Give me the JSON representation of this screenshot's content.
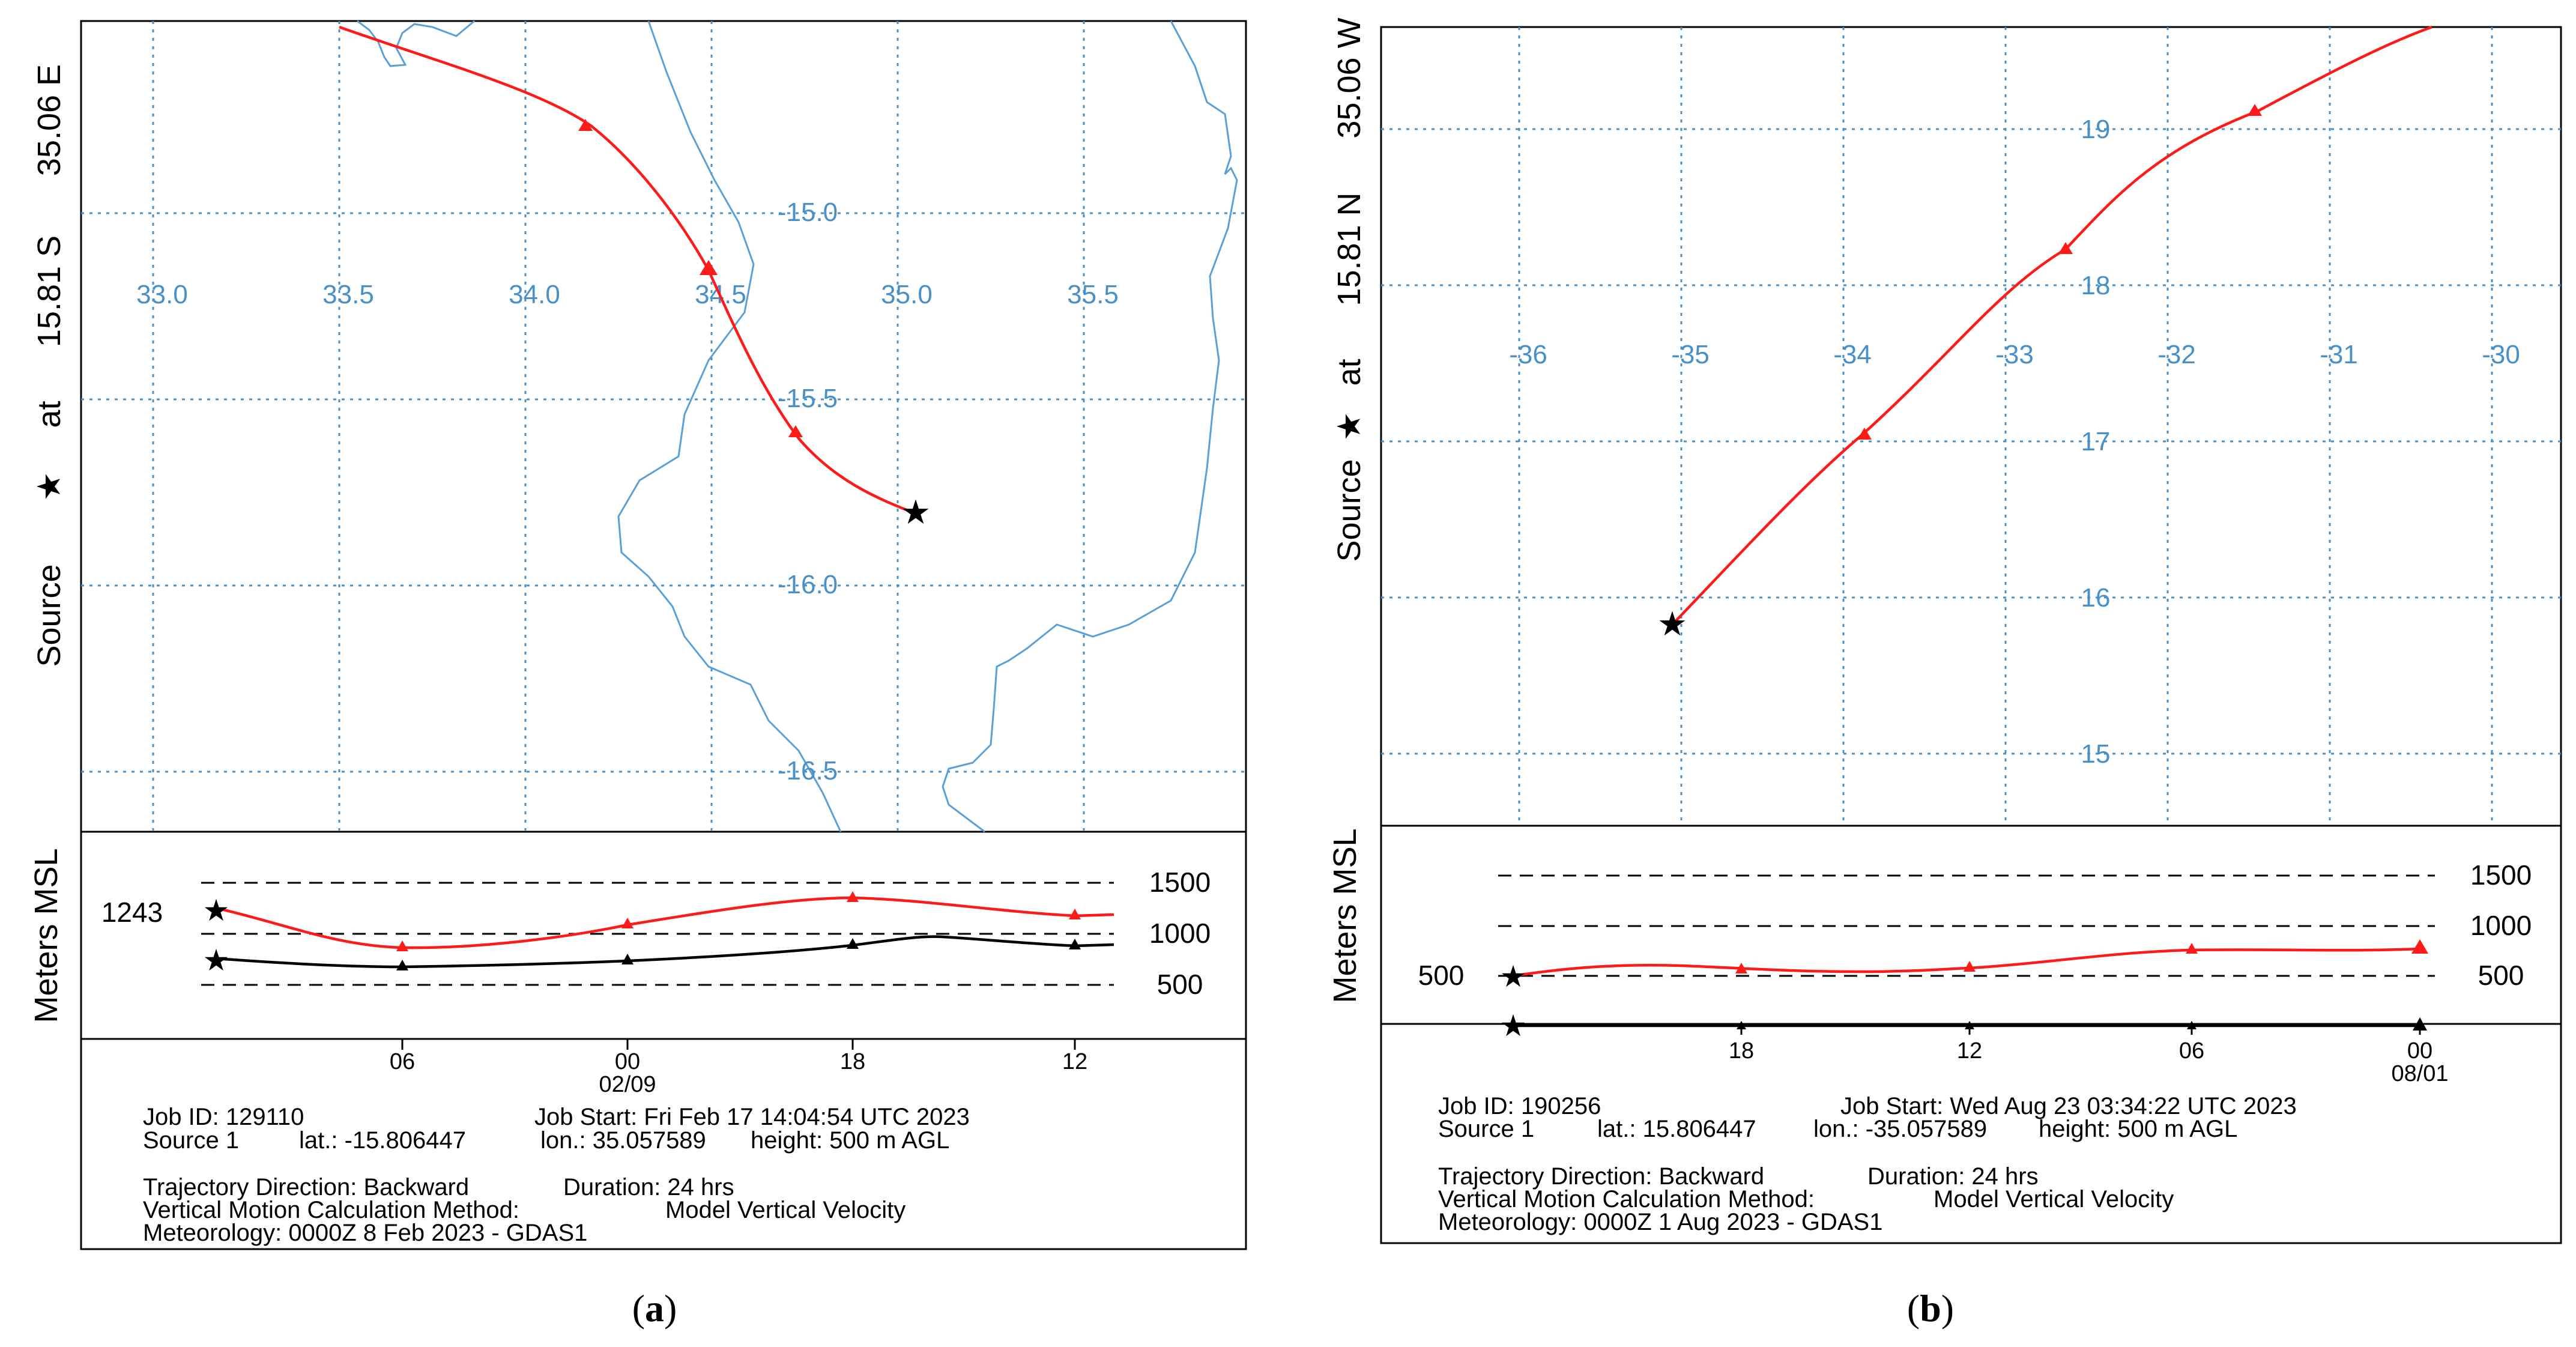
{
  "panel_a": {
    "caption_open": "(",
    "caption_letter": "a",
    "caption_close": ")",
    "side_label": {
      "prefix": "Source",
      "star": "★",
      "at": "at",
      "lat": "15.81 S",
      "lon": "35.06 E"
    },
    "axis_title": "Meters MSL",
    "lon_labels": [
      "33.0",
      "33.5",
      "34.0",
      "34.5",
      "35.0",
      "35.5"
    ],
    "lat_labels": [
      "-15.0",
      "-15.5",
      "-16.0",
      "-16.5"
    ],
    "height_levels": [
      "1500",
      "1000",
      "500"
    ],
    "start_height": "1243",
    "time_labels": [
      "06",
      "00",
      "18",
      "12"
    ],
    "date_label": "02/09",
    "info": {
      "job_id": "Job ID: 129110",
      "job_start": "Job Start: Fri Feb 17 14:04:54 UTC 2023",
      "source": "Source 1",
      "lat": "lat.: -15.806447",
      "lon": "lon.: 35.057589",
      "height": "height: 500 m AGL",
      "direction": "Trajectory Direction: Backward",
      "duration": "Duration: 24 hrs",
      "vmethod": "Vertical Motion Calculation Method:",
      "vmethod_value": "Model Vertical Velocity",
      "meteorology": "Meteorology: 0000Z 8 Feb 2023 - GDAS1"
    },
    "colors": {
      "trajectory": "#ff1a1a",
      "grid": "#4a90c8",
      "coast": "#5aa0d8",
      "terrain": "#000000"
    }
  },
  "panel_b": {
    "caption_open": "(",
    "caption_letter": "b",
    "caption_close": ")",
    "side_label": {
      "prefix": "Source",
      "star": "★",
      "at": "at",
      "lat": "15.81 N",
      "lon": "35.06 W"
    },
    "axis_title": "Meters MSL",
    "lon_labels": [
      "-36",
      "-35",
      "-34",
      "-33",
      "-32",
      "-31",
      "-30"
    ],
    "lat_labels": [
      "19",
      "18",
      "17",
      "16",
      "15"
    ],
    "height_levels": [
      "1500",
      "1000",
      "500"
    ],
    "start_height": "500",
    "time_labels": [
      "18",
      "12",
      "06",
      "00"
    ],
    "date_label": "08/01",
    "info": {
      "job_id": "Job ID: 190256",
      "job_start": "Job Start: Wed Aug 23 03:34:22 UTC 2023",
      "source": "Source 1",
      "lat": "lat.: 15.806447",
      "lon": "lon.: -35.057589",
      "height": "height: 500 m AGL",
      "direction": "Trajectory Direction: Backward",
      "duration": "Duration: 24 hrs",
      "vmethod": "Vertical Motion Calculation Method:",
      "vmethod_value": "Model Vertical Velocity",
      "meteorology": "Meteorology: 0000Z 1 Aug 2023 - GDAS1"
    },
    "colors": {
      "trajectory": "#ff1a1a",
      "grid": "#4a90c8",
      "terrain": "#000000"
    }
  }
}
